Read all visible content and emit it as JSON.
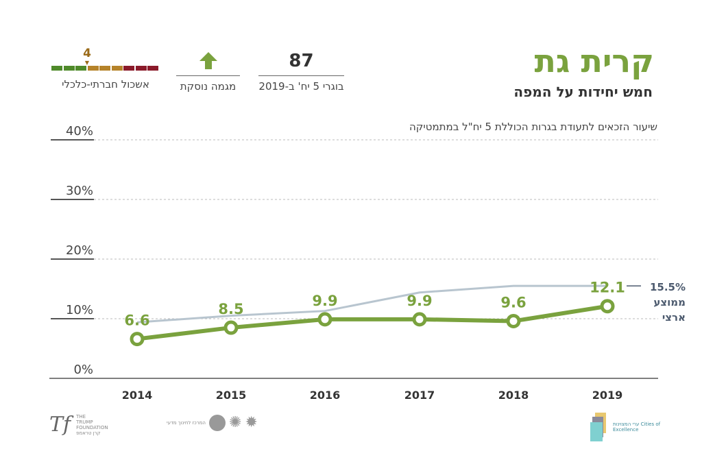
{
  "header": {
    "title": "קרית גת",
    "subtitle": "חמש יחידות על המפה"
  },
  "stats": [
    {
      "value": "87",
      "label": "בוגרי 5 יח' ב-2019"
    },
    {
      "value": "up-arrow-icon",
      "label": "מגמה נוסקת"
    },
    {
      "value": "4",
      "label": "אשכול חברתי-כלכלי",
      "scale_colors": [
        "#8b1a2a",
        "#8b1a2a",
        "#8b1a2a",
        "#b5832a",
        "#b5832a",
        "#b5832a",
        "#4f8a2a",
        "#4f8a2a",
        "#4f8a2a"
      ]
    }
  ],
  "colors": {
    "accent": "#7aa23e",
    "national": "#b8c5cf",
    "text": "#333333"
  },
  "chart_data": {
    "type": "line",
    "title": "שיעור הזכאים לתעודת בגרות הכוללת 5 יח\"ל במתמטיקה",
    "categories": [
      "2014",
      "2015",
      "2016",
      "2017",
      "2018",
      "2019"
    ],
    "yticks": [
      "0%",
      "10%",
      "20%",
      "30%",
      "40%"
    ],
    "ylim": [
      0,
      40
    ],
    "grid": true,
    "series": [
      {
        "name": "קרית גת",
        "values": [
          6.6,
          8.5,
          9.9,
          9.9,
          9.6,
          12.1
        ],
        "labels": [
          "6.6",
          "8.5",
          "9.9",
          "9.9",
          "9.6",
          "12.1"
        ]
      },
      {
        "name": "ממוצע ארצי",
        "values": [
          9.4,
          10.5,
          11.3,
          14.4,
          15.5,
          15.5
        ],
        "end_label": "15.5%"
      }
    ]
  },
  "footer": {
    "left_logo": "THE TRUMP FOUNDATION קרן טראמפ",
    "partners": "המרכז לחינוך מדעי",
    "right_logo": "ערי המצוינות Cities of Excellence"
  }
}
